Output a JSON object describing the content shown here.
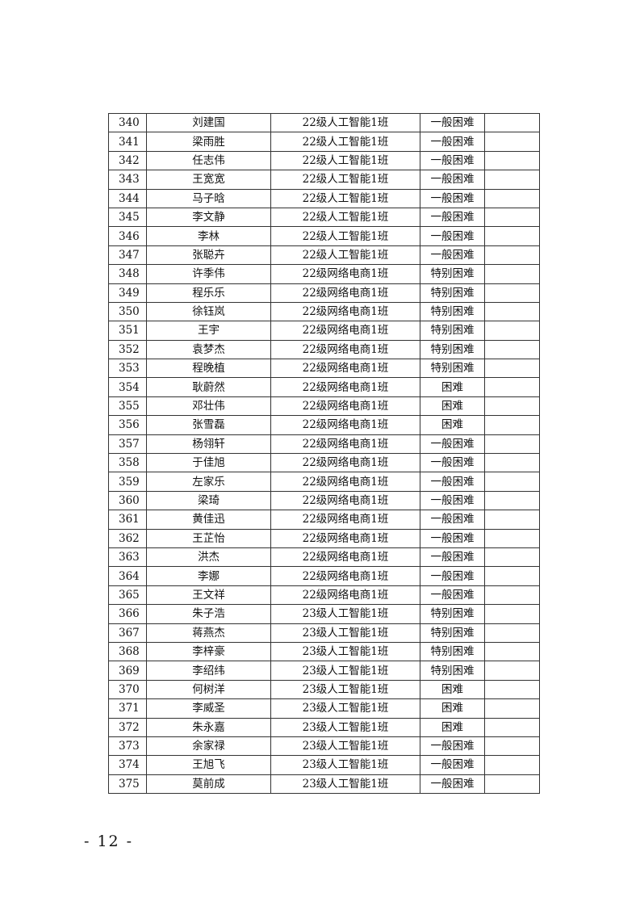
{
  "table": {
    "rows": [
      {
        "no": "340",
        "name": "刘建国",
        "class": "22级人工智能1班",
        "level": "一般困难",
        "note": ""
      },
      {
        "no": "341",
        "name": "梁雨胜",
        "class": "22级人工智能1班",
        "level": "一般困难",
        "note": ""
      },
      {
        "no": "342",
        "name": "任志伟",
        "class": "22级人工智能1班",
        "level": "一般困难",
        "note": ""
      },
      {
        "no": "343",
        "name": "王宽宽",
        "class": "22级人工智能1班",
        "level": "一般困难",
        "note": ""
      },
      {
        "no": "344",
        "name": "马子晗",
        "class": "22级人工智能1班",
        "level": "一般困难",
        "note": ""
      },
      {
        "no": "345",
        "name": "李文静",
        "class": "22级人工智能1班",
        "level": "一般困难",
        "note": ""
      },
      {
        "no": "346",
        "name": "李林",
        "class": "22级人工智能1班",
        "level": "一般困难",
        "note": ""
      },
      {
        "no": "347",
        "name": "张聪卉",
        "class": "22级人工智能1班",
        "level": "一般困难",
        "note": ""
      },
      {
        "no": "348",
        "name": "许季伟",
        "class": "22级网络电商1班",
        "level": "特别困难",
        "note": ""
      },
      {
        "no": "349",
        "name": "程乐乐",
        "class": "22级网络电商1班",
        "level": "特别困难",
        "note": ""
      },
      {
        "no": "350",
        "name": "徐钰岚",
        "class": "22级网络电商1班",
        "level": "特别困难",
        "note": ""
      },
      {
        "no": "351",
        "name": "王宇",
        "class": "22级网络电商1班",
        "level": "特别困难",
        "note": ""
      },
      {
        "no": "352",
        "name": "袁梦杰",
        "class": "22级网络电商1班",
        "level": "特别困难",
        "note": ""
      },
      {
        "no": "353",
        "name": "程晚植",
        "class": "22级网络电商1班",
        "level": "特别困难",
        "note": ""
      },
      {
        "no": "354",
        "name": "耿蔚然",
        "class": "22级网络电商1班",
        "level": "困难",
        "note": ""
      },
      {
        "no": "355",
        "name": "邓壮伟",
        "class": "22级网络电商1班",
        "level": "困难",
        "note": ""
      },
      {
        "no": "356",
        "name": "张雪磊",
        "class": "22级网络电商1班",
        "level": "困难",
        "note": ""
      },
      {
        "no": "357",
        "name": "杨翎轩",
        "class": "22级网络电商1班",
        "level": "一般困难",
        "note": ""
      },
      {
        "no": "358",
        "name": "于佳旭",
        "class": "22级网络电商1班",
        "level": "一般困难",
        "note": ""
      },
      {
        "no": "359",
        "name": "左家乐",
        "class": "22级网络电商1班",
        "level": "一般困难",
        "note": ""
      },
      {
        "no": "360",
        "name": "梁琦",
        "class": "22级网络电商1班",
        "level": "一般困难",
        "note": ""
      },
      {
        "no": "361",
        "name": "黄佳迅",
        "class": "22级网络电商1班",
        "level": "一般困难",
        "note": ""
      },
      {
        "no": "362",
        "name": "王芷怡",
        "class": "22级网络电商1班",
        "level": "一般困难",
        "note": ""
      },
      {
        "no": "363",
        "name": "洪杰",
        "class": "22级网络电商1班",
        "level": "一般困难",
        "note": ""
      },
      {
        "no": "364",
        "name": "李娜",
        "class": "22级网络电商1班",
        "level": "一般困难",
        "note": ""
      },
      {
        "no": "365",
        "name": "王文祥",
        "class": "22级网络电商1班",
        "level": "一般困难",
        "note": ""
      },
      {
        "no": "366",
        "name": "朱子浩",
        "class": "23级人工智能1班",
        "level": "特别困难",
        "note": ""
      },
      {
        "no": "367",
        "name": "蒋燕杰",
        "class": "23级人工智能1班",
        "level": "特别困难",
        "note": ""
      },
      {
        "no": "368",
        "name": "李梓豪",
        "class": "23级人工智能1班",
        "level": "特别困难",
        "note": ""
      },
      {
        "no": "369",
        "name": "李绍纬",
        "class": "23级人工智能1班",
        "level": "特别困难",
        "note": ""
      },
      {
        "no": "370",
        "name": "何树洋",
        "class": "23级人工智能1班",
        "level": "困难",
        "note": ""
      },
      {
        "no": "371",
        "name": "李威圣",
        "class": "23级人工智能1班",
        "level": "困难",
        "note": ""
      },
      {
        "no": "372",
        "name": "朱永嘉",
        "class": "23级人工智能1班",
        "level": "困难",
        "note": ""
      },
      {
        "no": "373",
        "name": "余家禄",
        "class": "23级人工智能1班",
        "level": "一般困难",
        "note": ""
      },
      {
        "no": "374",
        "name": "王旭飞",
        "class": "23级人工智能1班",
        "level": "一般困难",
        "note": ""
      },
      {
        "no": "375",
        "name": "莫前成",
        "class": "23级人工智能1班",
        "level": "一般困难",
        "note": ""
      }
    ]
  },
  "page_number": "- 12 -"
}
